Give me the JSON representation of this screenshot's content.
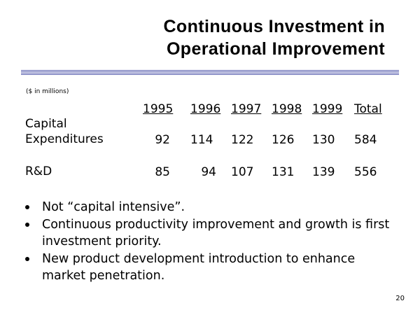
{
  "title": {
    "line1": "Continuous Investment in",
    "line2": "Operational Improvement"
  },
  "unit_note": "($ in millions)",
  "table": {
    "headers": [
      "1995",
      "1996",
      "1997",
      "1998",
      "1999",
      "Total"
    ],
    "rows": [
      {
        "label_line1": "Capital",
        "label_line2": "Expenditures",
        "values": [
          "92",
          "114",
          "122",
          "126",
          "130",
          "584"
        ]
      },
      {
        "label_line1": "R&D",
        "label_line2": "",
        "values": [
          "85",
          "94",
          "107",
          "131",
          "139",
          "556"
        ]
      }
    ]
  },
  "bullets": [
    "Not “capital intensive”.",
    "Continuous productivity improvement and growth is first investment priority.",
    "New product development introduction to enhance market penetration."
  ],
  "page_number": "20",
  "colors": {
    "rule": "#5c62b0",
    "text": "#000000",
    "background": "#ffffff"
  }
}
